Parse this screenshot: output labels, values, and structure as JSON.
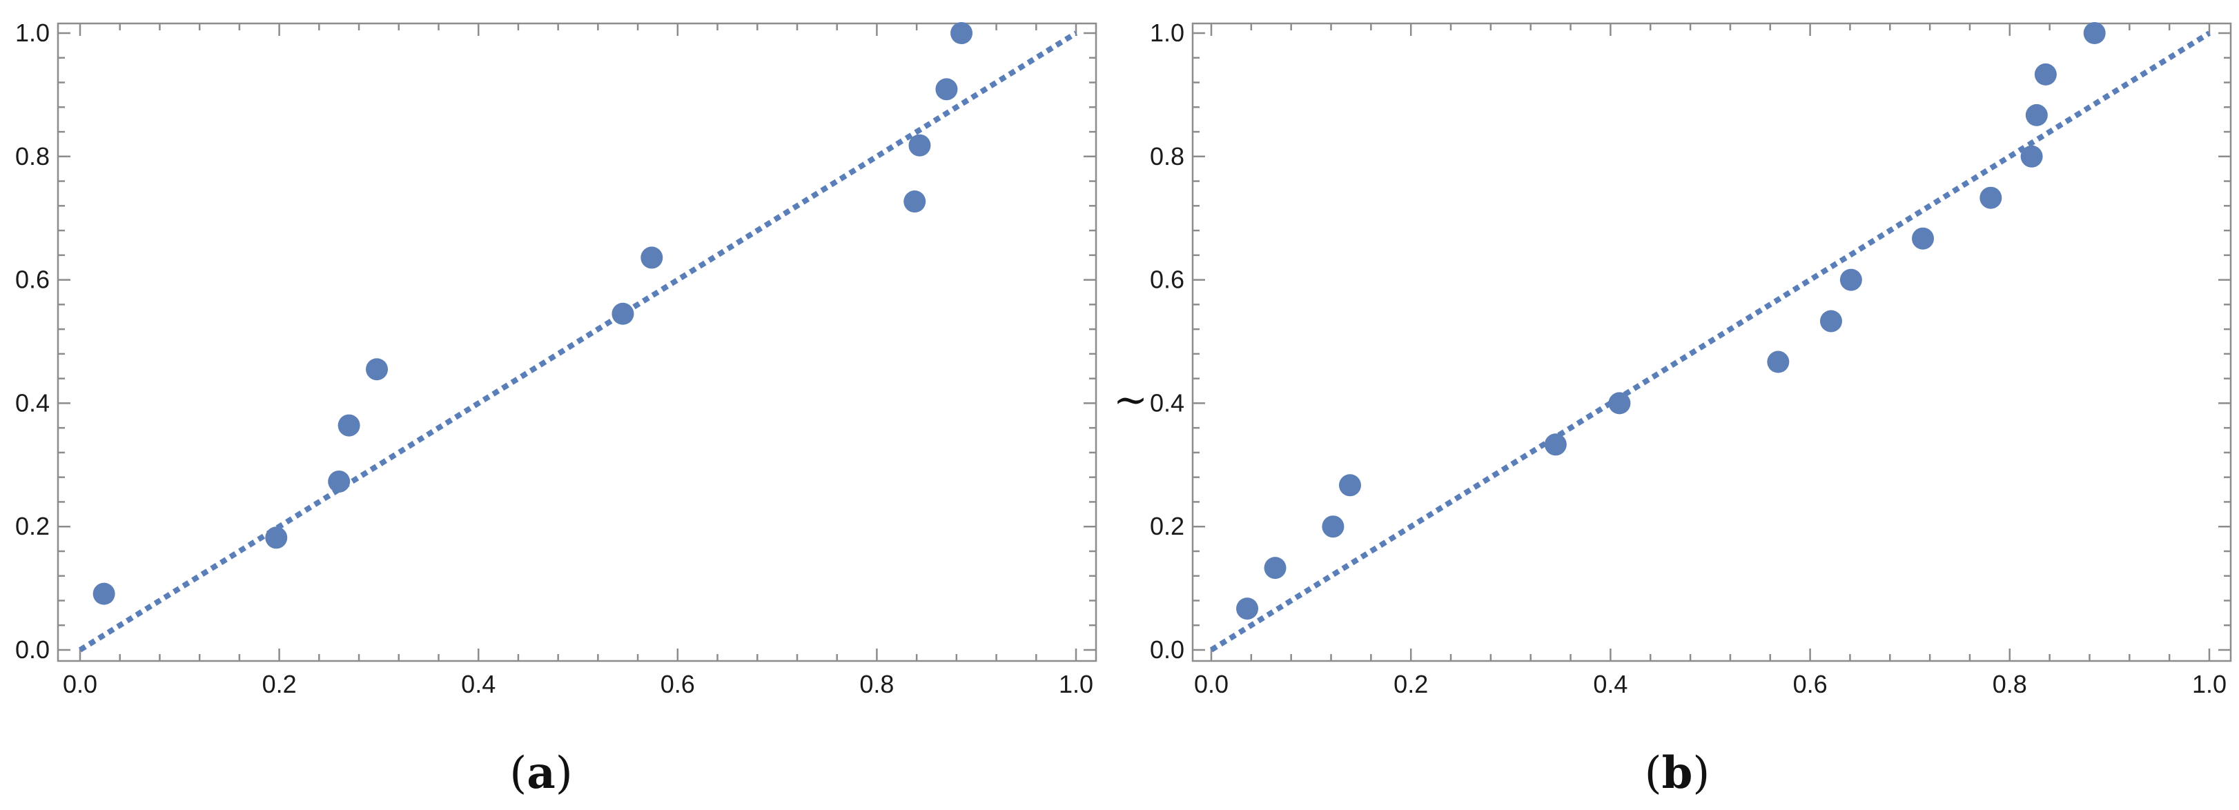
{
  "colors": {
    "points": "#5b7fb6",
    "reference_line": "#5b7fb6",
    "frame": "#8c8c8c"
  },
  "chart_data": [
    {
      "type": "scatter",
      "panel_label": "a",
      "xlim": [
        0,
        1
      ],
      "ylim": [
        0,
        1
      ],
      "x_ticks": [
        "0.0",
        "0.2",
        "0.4",
        "0.6",
        "0.8",
        "1.0"
      ],
      "y_ticks": [
        "0.0",
        "0.2",
        "0.4",
        "0.6",
        "0.8",
        "1.0"
      ],
      "reference_line": {
        "from": [
          0,
          0
        ],
        "to": [
          1,
          1
        ],
        "style": "dashed"
      },
      "grid": false,
      "points": [
        [
          0.024,
          0.091
        ],
        [
          0.197,
          0.182
        ],
        [
          0.26,
          0.273
        ],
        [
          0.27,
          0.364
        ],
        [
          0.298,
          0.455
        ],
        [
          0.545,
          0.545
        ],
        [
          0.574,
          0.636
        ],
        [
          0.838,
          0.727
        ],
        [
          0.843,
          0.818
        ],
        [
          0.87,
          0.909
        ],
        [
          0.885,
          1.0
        ]
      ]
    },
    {
      "type": "scatter",
      "panel_label": "b",
      "side_mark": "~",
      "xlim": [
        0,
        1
      ],
      "ylim": [
        0,
        1
      ],
      "x_ticks": [
        "0.0",
        "0.2",
        "0.4",
        "0.6",
        "0.8",
        "1.0"
      ],
      "y_ticks": [
        "0.0",
        "0.2",
        "0.4",
        "0.6",
        "0.8",
        "1.0"
      ],
      "reference_line": {
        "from": [
          0,
          0
        ],
        "to": [
          1,
          1
        ],
        "style": "dashed"
      },
      "grid": false,
      "points": [
        [
          0.036,
          0.067
        ],
        [
          0.064,
          0.133
        ],
        [
          0.122,
          0.2
        ],
        [
          0.139,
          0.267
        ],
        [
          0.345,
          0.333
        ],
        [
          0.409,
          0.4
        ],
        [
          0.568,
          0.467
        ],
        [
          0.621,
          0.533
        ],
        [
          0.641,
          0.6
        ],
        [
          0.713,
          0.667
        ],
        [
          0.781,
          0.733
        ],
        [
          0.822,
          0.8
        ],
        [
          0.827,
          0.867
        ],
        [
          0.836,
          0.933
        ],
        [
          0.885,
          1.0
        ]
      ]
    }
  ]
}
